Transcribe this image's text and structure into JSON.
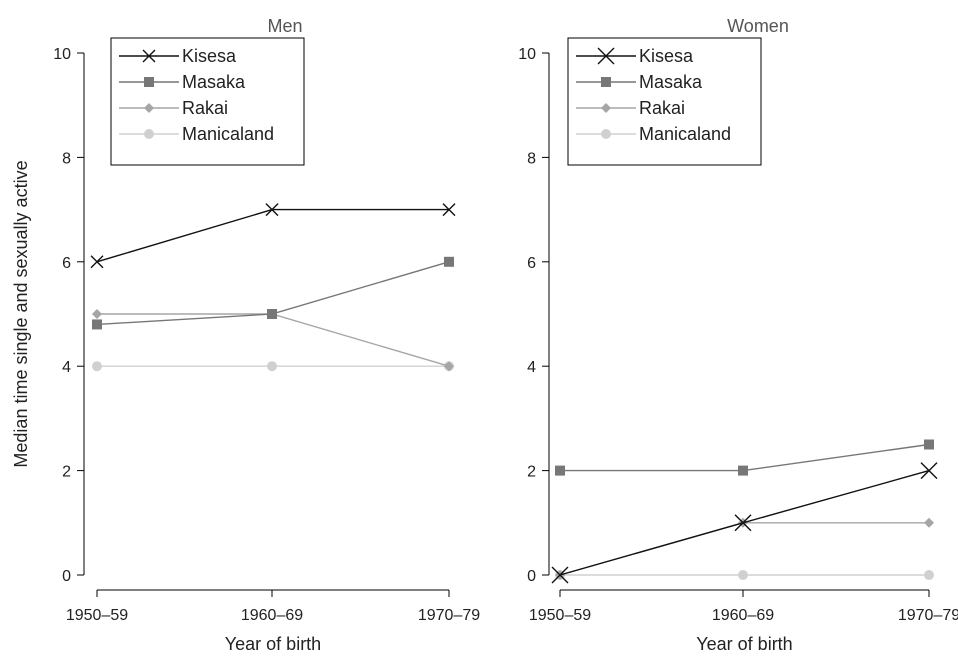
{
  "chart_data": {
    "type": "line",
    "ylabel": "Median time single and sexually active",
    "xlabel": "Year of birth",
    "categories": [
      "1950–59",
      "1960–69",
      "1970–79"
    ],
    "ylim": [
      0,
      10
    ],
    "yticks": [
      0,
      2,
      4,
      6,
      8,
      10
    ],
    "grid": false,
    "legend_placement": "top-left",
    "series_styles": [
      {
        "name": "Kisesa",
        "color": "#111111",
        "marker": "x"
      },
      {
        "name": "Masaka",
        "color": "#777777",
        "marker": "square"
      },
      {
        "name": "Rakai",
        "color": "#a6a6a6",
        "marker": "diamond"
      },
      {
        "name": "Manicaland",
        "color": "#d0d0d0",
        "marker": "circle"
      }
    ],
    "panels": [
      {
        "title": "Men",
        "series": [
          {
            "name": "Kisesa",
            "values": [
              6,
              7,
              7
            ]
          },
          {
            "name": "Masaka",
            "values": [
              4.8,
              5,
              6
            ]
          },
          {
            "name": "Rakai",
            "values": [
              5,
              5,
              4
            ]
          },
          {
            "name": "Manicaland",
            "values": [
              4,
              4,
              4
            ]
          }
        ]
      },
      {
        "title": "Women",
        "series": [
          {
            "name": "Kisesa",
            "values": [
              0,
              1,
              2
            ]
          },
          {
            "name": "Masaka",
            "values": [
              2,
              2,
              2.5
            ]
          },
          {
            "name": "Rakai",
            "values": [
              0,
              1,
              1
            ]
          },
          {
            "name": "Manicaland",
            "values": [
              0,
              0,
              0
            ]
          }
        ]
      }
    ]
  }
}
